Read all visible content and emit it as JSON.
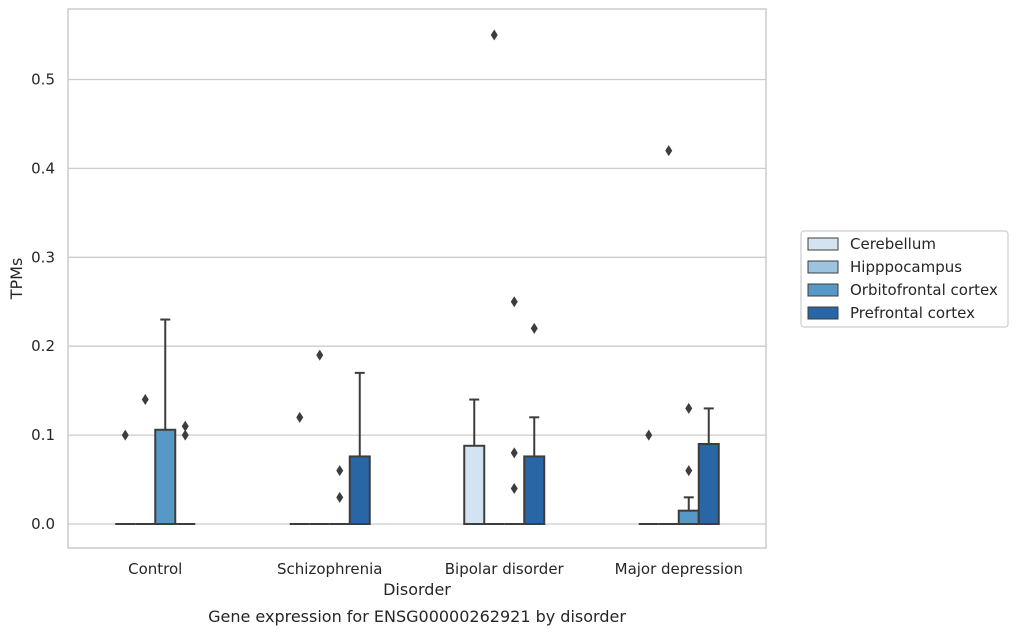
{
  "chart_data": {
    "type": "box",
    "title": "Gene expression for ENSG00000262921 by disorder",
    "xlabel": "Disorder",
    "ylabel": "TPMs",
    "ylim": [
      -0.027,
      0.58
    ],
    "yticks": [
      "0.0",
      "0.1",
      "0.2",
      "0.3",
      "0.4",
      "0.5"
    ],
    "grid": true,
    "legend_position": "right",
    "categories": [
      "Control",
      "Schizophrenia",
      "Bipolar disorder",
      "Major depression"
    ],
    "series": [
      {
        "name": "Cerebellum",
        "color": "#d4e3f1",
        "boxes": [
          {
            "q1": 0,
            "median": 0,
            "q3": 0,
            "whisker_low": 0,
            "whisker_high": 0,
            "outliers": [
              0.1
            ]
          },
          {
            "q1": 0,
            "median": 0,
            "q3": 0,
            "whisker_low": 0,
            "whisker_high": 0,
            "outliers": [
              0.12
            ]
          },
          {
            "q1": 0,
            "median": 0,
            "q3": 0.088,
            "whisker_low": 0,
            "whisker_high": 0.14,
            "outliers": []
          },
          {
            "q1": 0,
            "median": 0,
            "q3": 0,
            "whisker_low": 0,
            "whisker_high": 0,
            "outliers": [
              0.1
            ]
          }
        ]
      },
      {
        "name": "Hipppocampus",
        "color": "#9dc4de",
        "boxes": [
          {
            "q1": 0,
            "median": 0,
            "q3": 0,
            "whisker_low": 0,
            "whisker_high": 0,
            "outliers": [
              0.14
            ]
          },
          {
            "q1": 0,
            "median": 0,
            "q3": 0,
            "whisker_low": 0,
            "whisker_high": 0,
            "outliers": [
              0.19
            ]
          },
          {
            "q1": 0,
            "median": 0,
            "q3": 0,
            "whisker_low": 0,
            "whisker_high": 0,
            "outliers": [
              0.55
            ]
          },
          {
            "q1": 0,
            "median": 0,
            "q3": 0,
            "whisker_low": 0,
            "whisker_high": 0,
            "outliers": [
              0.42
            ]
          }
        ]
      },
      {
        "name": "Orbitofrontal cortex",
        "color": "#5698c6",
        "boxes": [
          {
            "q1": 0,
            "median": 0,
            "q3": 0.106,
            "whisker_low": 0,
            "whisker_high": 0.23,
            "outliers": []
          },
          {
            "q1": 0,
            "median": 0,
            "q3": 0,
            "whisker_low": 0,
            "whisker_high": 0,
            "outliers": [
              0.03,
              0.06
            ]
          },
          {
            "q1": 0,
            "median": 0,
            "q3": 0,
            "whisker_low": 0,
            "whisker_high": 0,
            "outliers": [
              0.04,
              0.08,
              0.25
            ]
          },
          {
            "q1": 0,
            "median": 0,
            "q3": 0.015,
            "whisker_low": 0,
            "whisker_high": 0.03,
            "outliers": [
              0.06,
              0.13
            ]
          }
        ]
      },
      {
        "name": "Prefrontal cortex",
        "color": "#2866a6",
        "boxes": [
          {
            "q1": 0,
            "median": 0,
            "q3": 0,
            "whisker_low": 0,
            "whisker_high": 0,
            "outliers": [
              0.1,
              0.11
            ]
          },
          {
            "q1": 0,
            "median": 0,
            "q3": 0.076,
            "whisker_low": 0,
            "whisker_high": 0.17,
            "outliers": []
          },
          {
            "q1": 0,
            "median": 0,
            "q3": 0.076,
            "whisker_low": 0,
            "whisker_high": 0.12,
            "outliers": [
              0.22
            ]
          },
          {
            "q1": 0,
            "median": 0,
            "q3": 0.09,
            "whisker_low": 0,
            "whisker_high": 0.13,
            "outliers": []
          }
        ]
      }
    ]
  }
}
